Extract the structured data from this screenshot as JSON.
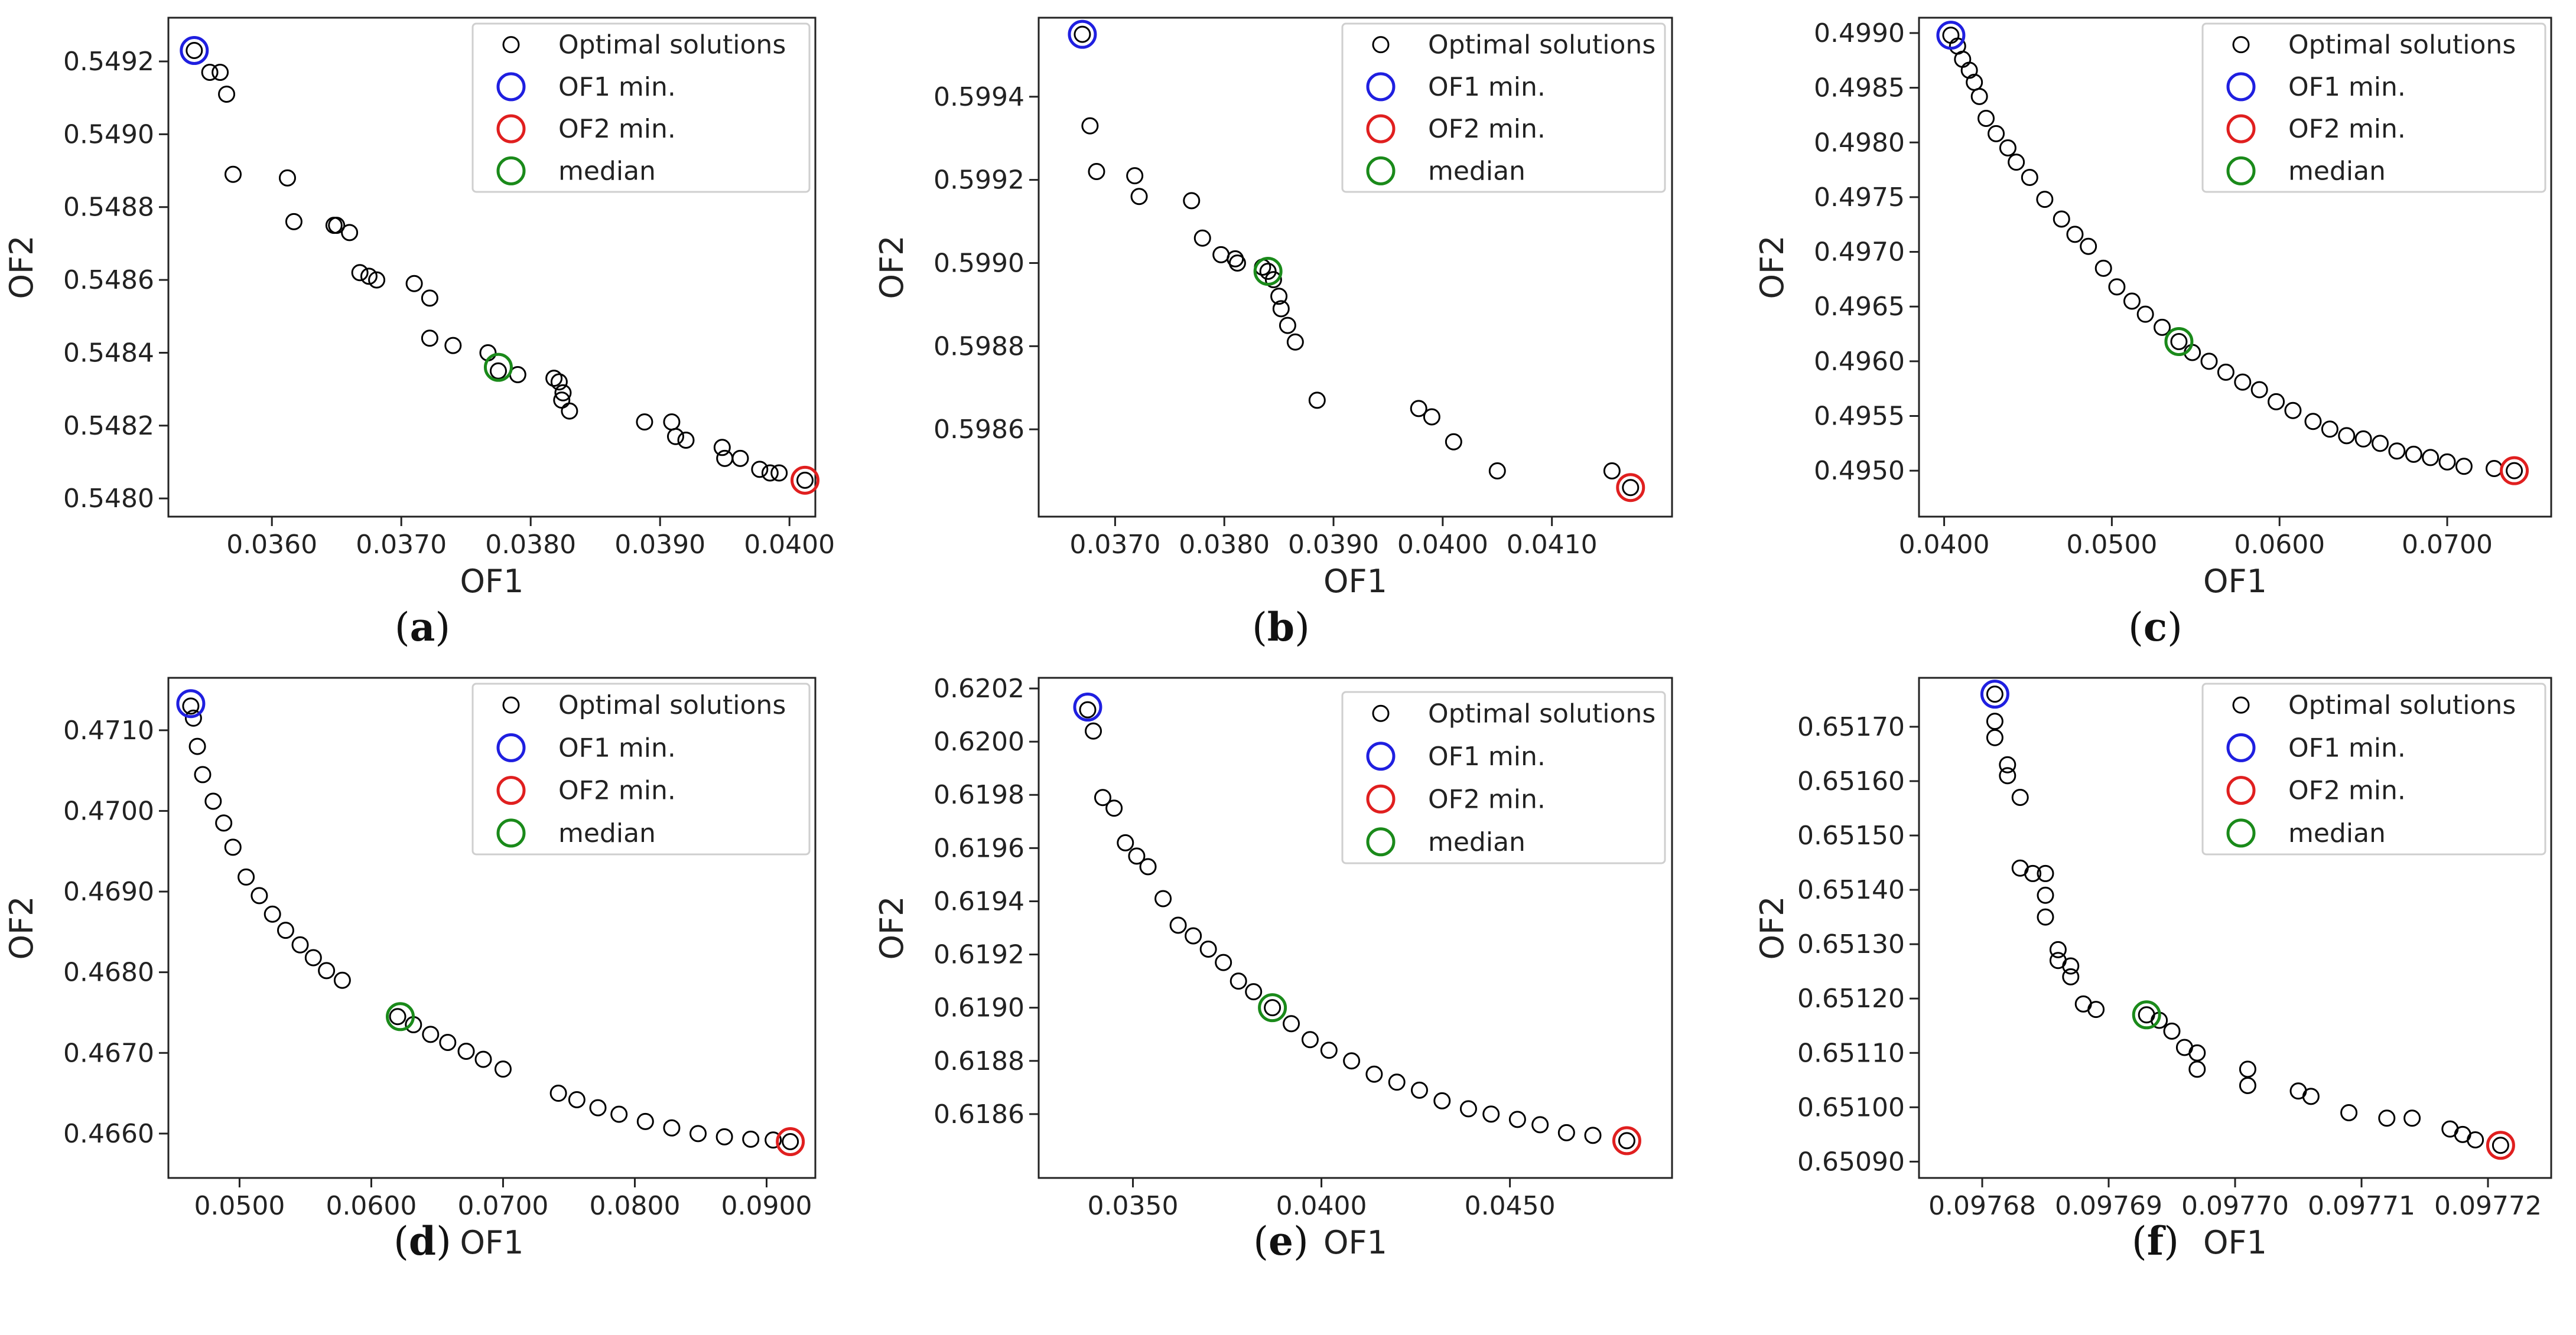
{
  "figure": {
    "legend_labels": [
      "Optimal solutions",
      "OF1 min.",
      "OF2 min.",
      "median"
    ],
    "colors": {
      "points": "#000000",
      "of1_min": "#1f1fe0",
      "of2_min": "#e01f1f",
      "median": "#1a8a1a"
    }
  },
  "chart_data": [
    {
      "type": "scatter",
      "panel": "(a)",
      "panel_letter": "a",
      "xlabel": "OF1",
      "ylabel": "OF2",
      "xlim": [
        0.0352,
        0.0402
      ],
      "ylim": [
        0.54795,
        0.54932
      ],
      "xticks": [
        0.036,
        0.037,
        0.038,
        0.039,
        0.04
      ],
      "xtick_labels": [
        "0.0360",
        "0.0370",
        "0.0380",
        "0.0390",
        "0.0400"
      ],
      "yticks": [
        0.548,
        0.5482,
        0.5484,
        0.5486,
        0.5488,
        0.549,
        0.5492
      ],
      "ytick_labels": [
        "0.5480",
        "0.5482",
        "0.5484",
        "0.5486",
        "0.5488",
        "0.5490",
        "0.5492"
      ],
      "points": [
        [
          0.0354,
          0.54923
        ],
        [
          0.03552,
          0.54917
        ],
        [
          0.0356,
          0.54917
        ],
        [
          0.03565,
          0.54911
        ],
        [
          0.0357,
          0.54889
        ],
        [
          0.03612,
          0.54888
        ],
        [
          0.03617,
          0.54876
        ],
        [
          0.03648,
          0.54875
        ],
        [
          0.0365,
          0.54875
        ],
        [
          0.0366,
          0.54873
        ],
        [
          0.03668,
          0.54862
        ],
        [
          0.03675,
          0.54861
        ],
        [
          0.03681,
          0.5486
        ],
        [
          0.0371,
          0.54859
        ],
        [
          0.03722,
          0.54855
        ],
        [
          0.03722,
          0.54844
        ],
        [
          0.0374,
          0.54842
        ],
        [
          0.03767,
          0.5484
        ],
        [
          0.03775,
          0.54835
        ],
        [
          0.0379,
          0.54834
        ],
        [
          0.03818,
          0.54833
        ],
        [
          0.03822,
          0.54832
        ],
        [
          0.03825,
          0.54829
        ],
        [
          0.03824,
          0.54827
        ],
        [
          0.0383,
          0.54824
        ],
        [
          0.03888,
          0.54821
        ],
        [
          0.03909,
          0.54821
        ],
        [
          0.03912,
          0.54817
        ],
        [
          0.0392,
          0.54816
        ],
        [
          0.03948,
          0.54814
        ],
        [
          0.0395,
          0.54811
        ],
        [
          0.03962,
          0.54811
        ],
        [
          0.03977,
          0.54808
        ],
        [
          0.03985,
          0.54807
        ],
        [
          0.03992,
          0.54807
        ],
        [
          0.04012,
          0.54805
        ]
      ],
      "of1_min": [
        0.0354,
        0.54923
      ],
      "of2_min": [
        0.04012,
        0.54805
      ],
      "median": [
        0.03775,
        0.54836
      ]
    },
    {
      "type": "scatter",
      "panel": "(b)",
      "panel_letter": "b",
      "xlabel": "OF1",
      "ylabel": "OF2",
      "xlim": [
        0.0363,
        0.0421
      ],
      "ylim": [
        0.59839,
        0.59959
      ],
      "xticks": [
        0.037,
        0.038,
        0.039,
        0.04,
        0.041
      ],
      "xtick_labels": [
        "0.0370",
        "0.0380",
        "0.0390",
        "0.0400",
        "0.0410"
      ],
      "yticks": [
        0.5986,
        0.5988,
        0.599,
        0.5992,
        0.5994
      ],
      "ytick_labels": [
        "0.5986",
        "0.5988",
        "0.5990",
        "0.5992",
        "0.5994"
      ],
      "points": [
        [
          0.0367,
          0.59955
        ],
        [
          0.03677,
          0.59933
        ],
        [
          0.03683,
          0.59922
        ],
        [
          0.03718,
          0.59921
        ],
        [
          0.03722,
          0.59916
        ],
        [
          0.0377,
          0.59915
        ],
        [
          0.0378,
          0.59906
        ],
        [
          0.03797,
          0.59902
        ],
        [
          0.0381,
          0.59901
        ],
        [
          0.03812,
          0.599
        ],
        [
          0.03835,
          0.59899
        ],
        [
          0.0384,
          0.59898
        ],
        [
          0.03845,
          0.59896
        ],
        [
          0.0385,
          0.59892
        ],
        [
          0.03852,
          0.59889
        ],
        [
          0.03858,
          0.59885
        ],
        [
          0.03865,
          0.59881
        ],
        [
          0.03885,
          0.59867
        ],
        [
          0.03978,
          0.59865
        ],
        [
          0.0399,
          0.59863
        ],
        [
          0.0401,
          0.59857
        ],
        [
          0.0405,
          0.5985
        ],
        [
          0.04155,
          0.5985
        ],
        [
          0.04172,
          0.59846
        ]
      ],
      "of1_min": [
        0.0367,
        0.59955
      ],
      "of2_min": [
        0.04172,
        0.59846
      ],
      "median": [
        0.0384,
        0.59898
      ]
    },
    {
      "type": "scatter",
      "panel": "(c)",
      "panel_letter": "c",
      "xlabel": "OF1",
      "ylabel": "OF2",
      "xlim": [
        0.0385,
        0.0762
      ],
      "ylim": [
        0.49458,
        0.49914
      ],
      "xticks": [
        0.04,
        0.05,
        0.06,
        0.07
      ],
      "xtick_labels": [
        "0.0400",
        "0.0500",
        "0.0600",
        "0.0700"
      ],
      "yticks": [
        0.495,
        0.4955,
        0.496,
        0.4965,
        0.497,
        0.4975,
        0.498,
        0.4985,
        0.499
      ],
      "ytick_labels": [
        "0.4950",
        "0.4955",
        "0.4960",
        "0.4965",
        "0.4970",
        "0.4975",
        "0.4980",
        "0.4985",
        "0.4990"
      ],
      "points": [
        [
          0.0404,
          0.49898
        ],
        [
          0.0408,
          0.49888
        ],
        [
          0.0411,
          0.49876
        ],
        [
          0.0415,
          0.49866
        ],
        [
          0.0418,
          0.49855
        ],
        [
          0.0421,
          0.49842
        ],
        [
          0.0425,
          0.49822
        ],
        [
          0.0431,
          0.49808
        ],
        [
          0.0438,
          0.49795
        ],
        [
          0.0443,
          0.49782
        ],
        [
          0.0451,
          0.49768
        ],
        [
          0.046,
          0.49748
        ],
        [
          0.047,
          0.4973
        ],
        [
          0.0478,
          0.49716
        ],
        [
          0.0486,
          0.49705
        ],
        [
          0.0495,
          0.49685
        ],
        [
          0.0503,
          0.49668
        ],
        [
          0.0512,
          0.49655
        ],
        [
          0.052,
          0.49643
        ],
        [
          0.053,
          0.49631
        ],
        [
          0.054,
          0.49618
        ],
        [
          0.0548,
          0.49608
        ],
        [
          0.0558,
          0.496
        ],
        [
          0.0568,
          0.4959
        ],
        [
          0.0578,
          0.49581
        ],
        [
          0.0588,
          0.49574
        ],
        [
          0.0598,
          0.49563
        ],
        [
          0.0608,
          0.49555
        ],
        [
          0.062,
          0.49545
        ],
        [
          0.063,
          0.49538
        ],
        [
          0.064,
          0.49532
        ],
        [
          0.065,
          0.49529
        ],
        [
          0.066,
          0.49525
        ],
        [
          0.067,
          0.49518
        ],
        [
          0.068,
          0.49515
        ],
        [
          0.069,
          0.49512
        ],
        [
          0.07,
          0.49508
        ],
        [
          0.071,
          0.49504
        ],
        [
          0.0728,
          0.49502
        ],
        [
          0.074,
          0.495
        ]
      ],
      "of1_min": [
        0.0404,
        0.49898
      ],
      "of2_min": [
        0.074,
        0.495
      ],
      "median": [
        0.054,
        0.49618
      ]
    },
    {
      "type": "scatter",
      "panel": "(d)",
      "panel_letter": "d",
      "xlabel": "OF1",
      "ylabel": "OF2",
      "xlim": [
        0.0446,
        0.0937
      ],
      "ylim": [
        0.46545,
        0.47165
      ],
      "xticks": [
        0.05,
        0.06,
        0.07,
        0.08,
        0.09
      ],
      "xtick_labels": [
        "0.0500",
        "0.0600",
        "0.0700",
        "0.0800",
        "0.0900"
      ],
      "yticks": [
        0.466,
        0.467,
        0.468,
        0.469,
        0.47,
        0.471
      ],
      "ytick_labels": [
        "0.4660",
        "0.4670",
        "0.4680",
        "0.4690",
        "0.4700",
        "0.4710"
      ],
      "points": [
        [
          0.0463,
          0.4713
        ],
        [
          0.0465,
          0.47115
        ],
        [
          0.0468,
          0.4708
        ],
        [
          0.0472,
          0.47045
        ],
        [
          0.048,
          0.47012
        ],
        [
          0.0488,
          0.46985
        ],
        [
          0.0495,
          0.46955
        ],
        [
          0.0505,
          0.46918
        ],
        [
          0.0515,
          0.46895
        ],
        [
          0.0525,
          0.46872
        ],
        [
          0.0535,
          0.46852
        ],
        [
          0.0546,
          0.46834
        ],
        [
          0.0556,
          0.46818
        ],
        [
          0.0566,
          0.46802
        ],
        [
          0.0578,
          0.4679
        ],
        [
          0.062,
          0.46745
        ],
        [
          0.0632,
          0.46735
        ],
        [
          0.0645,
          0.46723
        ],
        [
          0.0658,
          0.46713
        ],
        [
          0.0672,
          0.46702
        ],
        [
          0.0685,
          0.46692
        ],
        [
          0.07,
          0.4668
        ],
        [
          0.0742,
          0.4665
        ],
        [
          0.0756,
          0.46642
        ],
        [
          0.0772,
          0.46632
        ],
        [
          0.0788,
          0.46624
        ],
        [
          0.0808,
          0.46615
        ],
        [
          0.0828,
          0.46607
        ],
        [
          0.0848,
          0.466
        ],
        [
          0.0868,
          0.46596
        ],
        [
          0.0888,
          0.46593
        ],
        [
          0.0905,
          0.46592
        ],
        [
          0.0918,
          0.4659
        ]
      ],
      "of1_min": [
        0.0463,
        0.47133
      ],
      "of2_min": [
        0.0918,
        0.4659
      ],
      "median": [
        0.0622,
        0.46745
      ]
    },
    {
      "type": "scatter",
      "panel": "(e)",
      "panel_letter": "e",
      "xlabel": "OF1",
      "ylabel": "OF2",
      "xlim": [
        0.0325,
        0.0493
      ],
      "ylim": [
        0.61836,
        0.62024
      ],
      "xticks": [
        0.035,
        0.04,
        0.045
      ],
      "xtick_labels": [
        "0.0350",
        "0.0400",
        "0.0450"
      ],
      "yticks": [
        0.6186,
        0.6188,
        0.619,
        0.6192,
        0.6194,
        0.6196,
        0.6198,
        0.62,
        0.6202
      ],
      "ytick_labels": [
        "0.6186",
        "0.6188",
        "0.6190",
        "0.6192",
        "0.6194",
        "0.6196",
        "0.6198",
        "0.6200",
        "0.6202"
      ],
      "points": [
        [
          0.0338,
          0.62012
        ],
        [
          0.03395,
          0.62004
        ],
        [
          0.0342,
          0.61979
        ],
        [
          0.0345,
          0.61975
        ],
        [
          0.0348,
          0.61962
        ],
        [
          0.0351,
          0.61957
        ],
        [
          0.0354,
          0.61953
        ],
        [
          0.0358,
          0.61941
        ],
        [
          0.0362,
          0.61931
        ],
        [
          0.0366,
          0.61927
        ],
        [
          0.037,
          0.61922
        ],
        [
          0.0374,
          0.61917
        ],
        [
          0.0378,
          0.6191
        ],
        [
          0.0382,
          0.61906
        ],
        [
          0.0387,
          0.619
        ],
        [
          0.0392,
          0.61894
        ],
        [
          0.0397,
          0.61888
        ],
        [
          0.0402,
          0.61884
        ],
        [
          0.0408,
          0.6188
        ],
        [
          0.0414,
          0.61875
        ],
        [
          0.042,
          0.61872
        ],
        [
          0.0426,
          0.61869
        ],
        [
          0.0432,
          0.61865
        ],
        [
          0.0439,
          0.61862
        ],
        [
          0.0445,
          0.6186
        ],
        [
          0.0452,
          0.61858
        ],
        [
          0.0458,
          0.61856
        ],
        [
          0.0465,
          0.61853
        ],
        [
          0.0472,
          0.61852
        ],
        [
          0.0481,
          0.6185
        ]
      ],
      "of1_min": [
        0.0338,
        0.62013
      ],
      "of2_min": [
        0.0481,
        0.6185
      ],
      "median": [
        0.0387,
        0.619
      ]
    },
    {
      "type": "scatter",
      "panel": "(f)",
      "panel_letter": "f",
      "xlabel": "OF1",
      "ylabel": "OF2",
      "xlim": [
        0.097675,
        0.097725
      ],
      "ylim": [
        0.65087,
        0.65179
      ],
      "xticks": [
        0.09768,
        0.09769,
        0.0977,
        0.09771,
        0.09772
      ],
      "xtick_labels": [
        "0.09768",
        "0.09769",
        "0.09770",
        "0.09771",
        "0.09772"
      ],
      "yticks": [
        0.6509,
        0.651,
        0.6511,
        0.6512,
        0.6513,
        0.6514,
        0.6515,
        0.6516,
        0.6517
      ],
      "ytick_labels": [
        "0.65090",
        "0.65100",
        "0.65110",
        "0.65120",
        "0.65130",
        "0.65140",
        "0.65150",
        "0.65160",
        "0.65170"
      ],
      "points": [
        [
          0.097681,
          0.65176
        ],
        [
          0.097681,
          0.65171
        ],
        [
          0.097681,
          0.65168
        ],
        [
          0.097682,
          0.65163
        ],
        [
          0.097682,
          0.65161
        ],
        [
          0.097683,
          0.65157
        ],
        [
          0.097683,
          0.65144
        ],
        [
          0.097684,
          0.65143
        ],
        [
          0.097685,
          0.65143
        ],
        [
          0.097685,
          0.65139
        ],
        [
          0.097685,
          0.65135
        ],
        [
          0.097686,
          0.65129
        ],
        [
          0.097686,
          0.65127
        ],
        [
          0.097687,
          0.65126
        ],
        [
          0.097687,
          0.65124
        ],
        [
          0.097688,
          0.65119
        ],
        [
          0.097689,
          0.65118
        ],
        [
          0.097693,
          0.65117
        ],
        [
          0.097694,
          0.65116
        ],
        [
          0.097695,
          0.65114
        ],
        [
          0.097696,
          0.65111
        ],
        [
          0.097697,
          0.6511
        ],
        [
          0.097697,
          0.65107
        ],
        [
          0.097701,
          0.65107
        ],
        [
          0.097701,
          0.65104
        ],
        [
          0.097705,
          0.65103
        ],
        [
          0.097706,
          0.65102
        ],
        [
          0.097709,
          0.65099
        ],
        [
          0.097712,
          0.65098
        ],
        [
          0.097714,
          0.65098
        ],
        [
          0.097717,
          0.65096
        ],
        [
          0.097718,
          0.65095
        ],
        [
          0.097719,
          0.65094
        ],
        [
          0.097721,
          0.65093
        ]
      ],
      "of1_min": [
        0.097681,
        0.65176
      ],
      "of2_min": [
        0.097721,
        0.65093
      ],
      "median": [
        0.097693,
        0.65117
      ]
    }
  ]
}
